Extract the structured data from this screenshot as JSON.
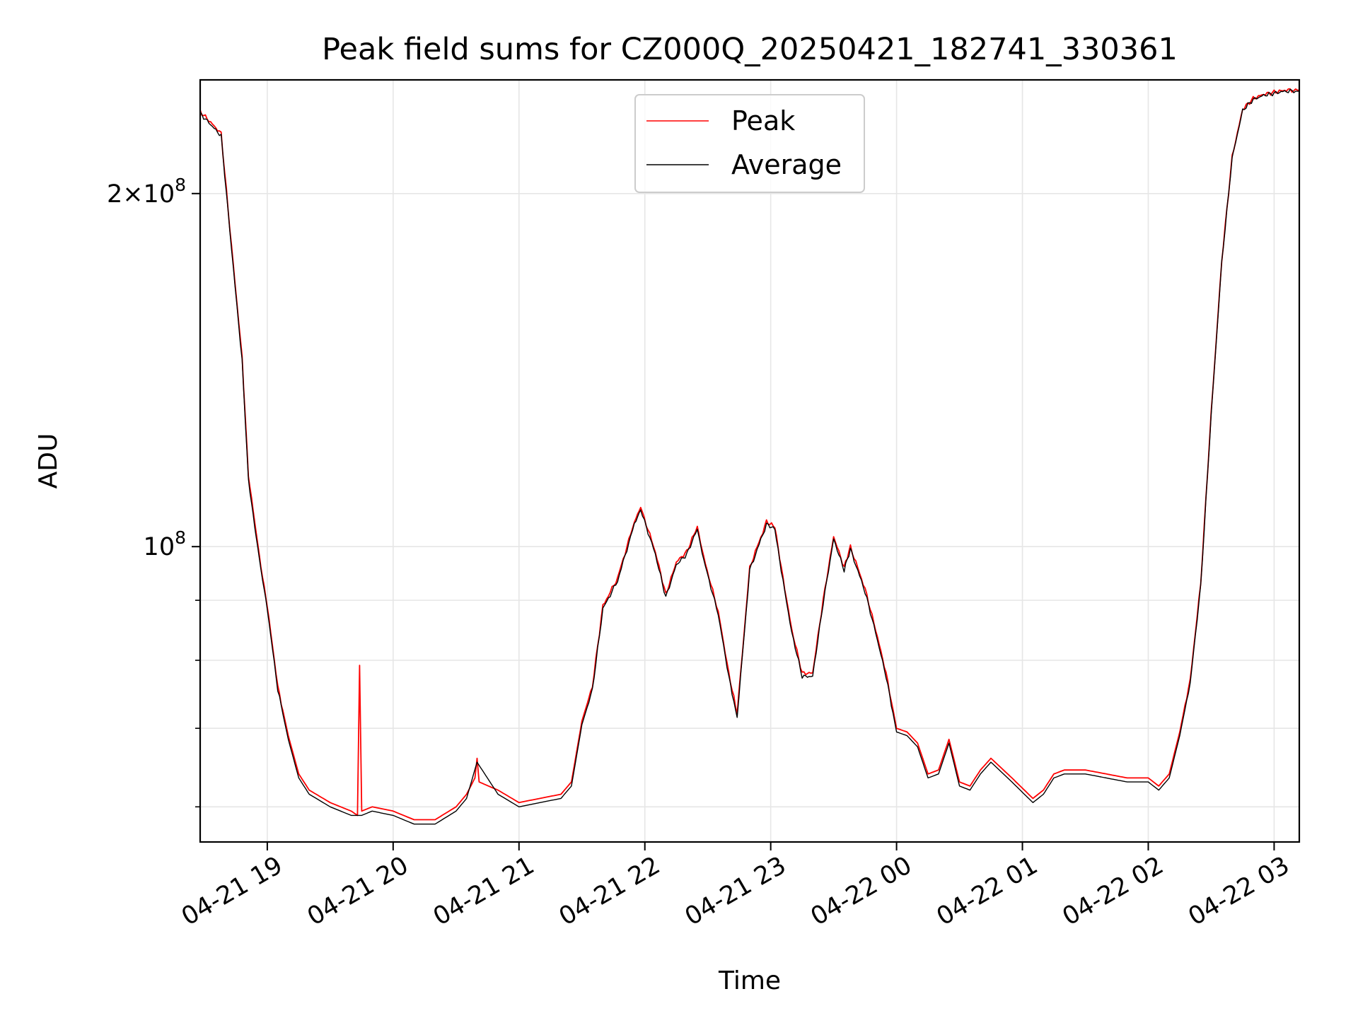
{
  "chart_data": {
    "type": "line",
    "title": "Peak field sums for CZ000Q_20250421_182741_330361",
    "xlabel": "Time",
    "ylabel": "ADU",
    "y_scale": "log",
    "grid": true,
    "legend_position": "upper center",
    "xlim": [
      "2025-04-21 18:28",
      "2025-04-22 03:12"
    ],
    "ylim": [
      56000000,
      250000000
    ],
    "x_ticks": [
      "04-21 19",
      "04-21 20",
      "04-21 21",
      "04-21 22",
      "04-21 23",
      "04-22 00",
      "04-22 01",
      "04-22 02",
      "04-22 03"
    ],
    "x_tick_times": [
      "2025-04-21 19:00",
      "2025-04-21 20:00",
      "2025-04-21 21:00",
      "2025-04-21 22:00",
      "2025-04-21 23:00",
      "2025-04-22 00:00",
      "2025-04-22 01:00",
      "2025-04-22 02:00",
      "2025-04-22 03:00"
    ],
    "y_major_ticks": [
      {
        "value": 100000000,
        "label_base": "10",
        "label_exp": "8",
        "label_prefix": ""
      },
      {
        "value": 200000000,
        "label_base": "10",
        "label_exp": "8",
        "label_prefix": "2×"
      }
    ],
    "y_minor_ticks": [
      60000000,
      70000000,
      80000000,
      90000000
    ],
    "series": [
      {
        "name": "Peak",
        "color": "#ff0000",
        "x": [
          "2025-04-21 18:28",
          "2025-04-21 18:33",
          "2025-04-21 18:38",
          "2025-04-21 18:43",
          "2025-04-21 18:48",
          "2025-04-21 18:51",
          "2025-04-21 18:54",
          "2025-04-21 18:57",
          "2025-04-21 19:00",
          "2025-04-21 19:05",
          "2025-04-21 19:10",
          "2025-04-21 19:15",
          "2025-04-21 19:20",
          "2025-04-21 19:30",
          "2025-04-21 19:40",
          "2025-04-21 19:43",
          "2025-04-21 19:44",
          "2025-04-21 19:45",
          "2025-04-21 19:50",
          "2025-04-21 20:00",
          "2025-04-21 20:10",
          "2025-04-21 20:20",
          "2025-04-21 20:30",
          "2025-04-21 20:35",
          "2025-04-21 20:39",
          "2025-04-21 20:40",
          "2025-04-21 20:41",
          "2025-04-21 20:50",
          "2025-04-21 21:00",
          "2025-04-21 21:10",
          "2025-04-21 21:20",
          "2025-04-21 21:25",
          "2025-04-21 21:30",
          "2025-04-21 21:35",
          "2025-04-21 21:40",
          "2025-04-21 21:47",
          "2025-04-21 21:55",
          "2025-04-21 21:58",
          "2025-04-21 22:05",
          "2025-04-21 22:10",
          "2025-04-21 22:15",
          "2025-04-21 22:20",
          "2025-04-21 22:25",
          "2025-04-21 22:28",
          "2025-04-21 22:35",
          "2025-04-21 22:40",
          "2025-04-21 22:44",
          "2025-04-21 22:50",
          "2025-04-21 22:58",
          "2025-04-21 23:02",
          "2025-04-21 23:05",
          "2025-04-21 23:10",
          "2025-04-21 23:15",
          "2025-04-21 23:20",
          "2025-04-21 23:25",
          "2025-04-21 23:30",
          "2025-04-21 23:35",
          "2025-04-21 23:38",
          "2025-04-21 23:45",
          "2025-04-21 23:50",
          "2025-04-21 23:55",
          "2025-04-22 00:00",
          "2025-04-22 00:05",
          "2025-04-22 00:10",
          "2025-04-22 00:15",
          "2025-04-22 00:20",
          "2025-04-22 00:25",
          "2025-04-22 00:30",
          "2025-04-22 00:35",
          "2025-04-22 00:40",
          "2025-04-22 00:45",
          "2025-04-22 00:55",
          "2025-04-22 01:05",
          "2025-04-22 01:10",
          "2025-04-22 01:15",
          "2025-04-22 01:20",
          "2025-04-22 01:30",
          "2025-04-22 01:40",
          "2025-04-22 01:50",
          "2025-04-22 02:00",
          "2025-04-22 02:05",
          "2025-04-22 02:10",
          "2025-04-22 02:15",
          "2025-04-22 02:20",
          "2025-04-22 02:25",
          "2025-04-22 02:30",
          "2025-04-22 02:35",
          "2025-04-22 02:40",
          "2025-04-22 02:45",
          "2025-04-22 02:50",
          "2025-04-22 02:55",
          "2025-04-22 03:00",
          "2025-04-22 03:05",
          "2025-04-22 03:12"
        ],
        "y": [
          235000000,
          230000000,
          225000000,
          180000000,
          145000000,
          115000000,
          105000000,
          96000000,
          89000000,
          76000000,
          69000000,
          64000000,
          62000000,
          60500000,
          59500000,
          59000000,
          79000000,
          59500000,
          60000000,
          59500000,
          58500000,
          58500000,
          60000000,
          61500000,
          63500000,
          66000000,
          63000000,
          62000000,
          60500000,
          61000000,
          61500000,
          63000000,
          71000000,
          76000000,
          89000000,
          94000000,
          105000000,
          108000000,
          99000000,
          91000000,
          97000000,
          99000000,
          104000000,
          98000000,
          88000000,
          78000000,
          72000000,
          96000000,
          105000000,
          104000000,
          96000000,
          85000000,
          78000000,
          78000000,
          90000000,
          102000000,
          96000000,
          100000000,
          92000000,
          85000000,
          78000000,
          70000000,
          69500000,
          68000000,
          64000000,
          64500000,
          68500000,
          63000000,
          62500000,
          64500000,
          66000000,
          63500000,
          61000000,
          62000000,
          64000000,
          64500000,
          64500000,
          64000000,
          63500000,
          63500000,
          62500000,
          64000000,
          69500000,
          77000000,
          93000000,
          130000000,
          175000000,
          215000000,
          236000000,
          241000000,
          243000000,
          244000000,
          245000000,
          245000000
        ]
      },
      {
        "name": "Average",
        "color": "#000000",
        "x": [
          "2025-04-21 18:28",
          "2025-04-21 18:33",
          "2025-04-21 18:38",
          "2025-04-21 18:43",
          "2025-04-21 18:48",
          "2025-04-21 18:51",
          "2025-04-21 18:54",
          "2025-04-21 18:57",
          "2025-04-21 19:00",
          "2025-04-21 19:05",
          "2025-04-21 19:10",
          "2025-04-21 19:15",
          "2025-04-21 19:20",
          "2025-04-21 19:30",
          "2025-04-21 19:40",
          "2025-04-21 19:45",
          "2025-04-21 19:50",
          "2025-04-21 20:00",
          "2025-04-21 20:10",
          "2025-04-21 20:20",
          "2025-04-21 20:30",
          "2025-04-21 20:35",
          "2025-04-21 20:40",
          "2025-04-21 20:50",
          "2025-04-21 21:00",
          "2025-04-21 21:10",
          "2025-04-21 21:20",
          "2025-04-21 21:25",
          "2025-04-21 21:30",
          "2025-04-21 21:35",
          "2025-04-21 21:40",
          "2025-04-21 21:47",
          "2025-04-21 21:55",
          "2025-04-21 21:58",
          "2025-04-21 22:05",
          "2025-04-21 22:10",
          "2025-04-21 22:15",
          "2025-04-21 22:20",
          "2025-04-21 22:25",
          "2025-04-21 22:28",
          "2025-04-21 22:35",
          "2025-04-21 22:40",
          "2025-04-21 22:44",
          "2025-04-21 22:50",
          "2025-04-21 22:58",
          "2025-04-21 23:02",
          "2025-04-21 23:05",
          "2025-04-21 23:10",
          "2025-04-21 23:15",
          "2025-04-21 23:20",
          "2025-04-21 23:25",
          "2025-04-21 23:30",
          "2025-04-21 23:35",
          "2025-04-21 23:38",
          "2025-04-21 23:45",
          "2025-04-21 23:50",
          "2025-04-21 23:55",
          "2025-04-22 00:00",
          "2025-04-22 00:05",
          "2025-04-22 00:10",
          "2025-04-22 00:15",
          "2025-04-22 00:20",
          "2025-04-22 00:25",
          "2025-04-22 00:30",
          "2025-04-22 00:35",
          "2025-04-22 00:40",
          "2025-04-22 00:45",
          "2025-04-22 00:55",
          "2025-04-22 01:05",
          "2025-04-22 01:10",
          "2025-04-22 01:15",
          "2025-04-22 01:20",
          "2025-04-22 01:30",
          "2025-04-22 01:40",
          "2025-04-22 01:50",
          "2025-04-22 02:00",
          "2025-04-22 02:05",
          "2025-04-22 02:10",
          "2025-04-22 02:15",
          "2025-04-22 02:20",
          "2025-04-22 02:25",
          "2025-04-22 02:30",
          "2025-04-22 02:35",
          "2025-04-22 02:40",
          "2025-04-22 02:45",
          "2025-04-22 02:50",
          "2025-04-22 02:55",
          "2025-04-22 03:00",
          "2025-04-22 03:05",
          "2025-04-22 03:12"
        ],
        "y": [
          234000000,
          229000000,
          224000000,
          179000000,
          144000000,
          114000000,
          104000000,
          95500000,
          88500000,
          75500000,
          68500000,
          63500000,
          61500000,
          60000000,
          59000000,
          59000000,
          59500000,
          59000000,
          58000000,
          58000000,
          59500000,
          61000000,
          65500000,
          61500000,
          60000000,
          60500000,
          61000000,
          62500000,
          70500000,
          75500000,
          88500000,
          93500000,
          104500000,
          107500000,
          98500000,
          90500000,
          96500000,
          98500000,
          103500000,
          97500000,
          87500000,
          77500000,
          71500000,
          95500000,
          104500000,
          103500000,
          95500000,
          84500000,
          77500000,
          77500000,
          89500000,
          101500000,
          95500000,
          99500000,
          91500000,
          84500000,
          77500000,
          69500000,
          69000000,
          67500000,
          63500000,
          64000000,
          68000000,
          62500000,
          62000000,
          64000000,
          65500000,
          63000000,
          60500000,
          61500000,
          63500000,
          64000000,
          64000000,
          63500000,
          63000000,
          63000000,
          62000000,
          63500000,
          69000000,
          76500000,
          92500000,
          129500000,
          174500000,
          214500000,
          235500000,
          240500000,
          242500000,
          243500000,
          244500000,
          244500000
        ]
      }
    ]
  }
}
